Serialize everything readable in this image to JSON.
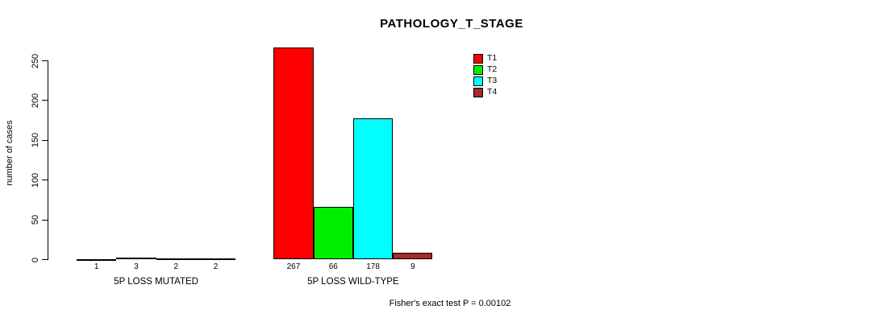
{
  "chart_data": {
    "type": "bar",
    "title": "PATHOLOGY_T_STAGE",
    "ylabel": "number of cases",
    "xlabel": "",
    "annotation": "Fisher's exact test P = 0.00102",
    "categories": [
      "5P LOSS MUTATED",
      "5P LOSS WILD-TYPE"
    ],
    "series": [
      {
        "name": "T1",
        "color": "#FF0000",
        "values": [
          1,
          267
        ]
      },
      {
        "name": "T2",
        "color": "#00EE00",
        "values": [
          3,
          66
        ]
      },
      {
        "name": "T3",
        "color": "#00FFFF",
        "values": [
          2,
          178
        ]
      },
      {
        "name": "T4",
        "color": "#A52A2A",
        "values": [
          2,
          9
        ]
      }
    ],
    "yticks": [
      0,
      50,
      100,
      150,
      200,
      250
    ],
    "ylim": [
      0,
      250
    ],
    "grid": false,
    "legend_position": "top-right",
    "background_color": "#FFFFFF",
    "axis_color": "#000000"
  }
}
